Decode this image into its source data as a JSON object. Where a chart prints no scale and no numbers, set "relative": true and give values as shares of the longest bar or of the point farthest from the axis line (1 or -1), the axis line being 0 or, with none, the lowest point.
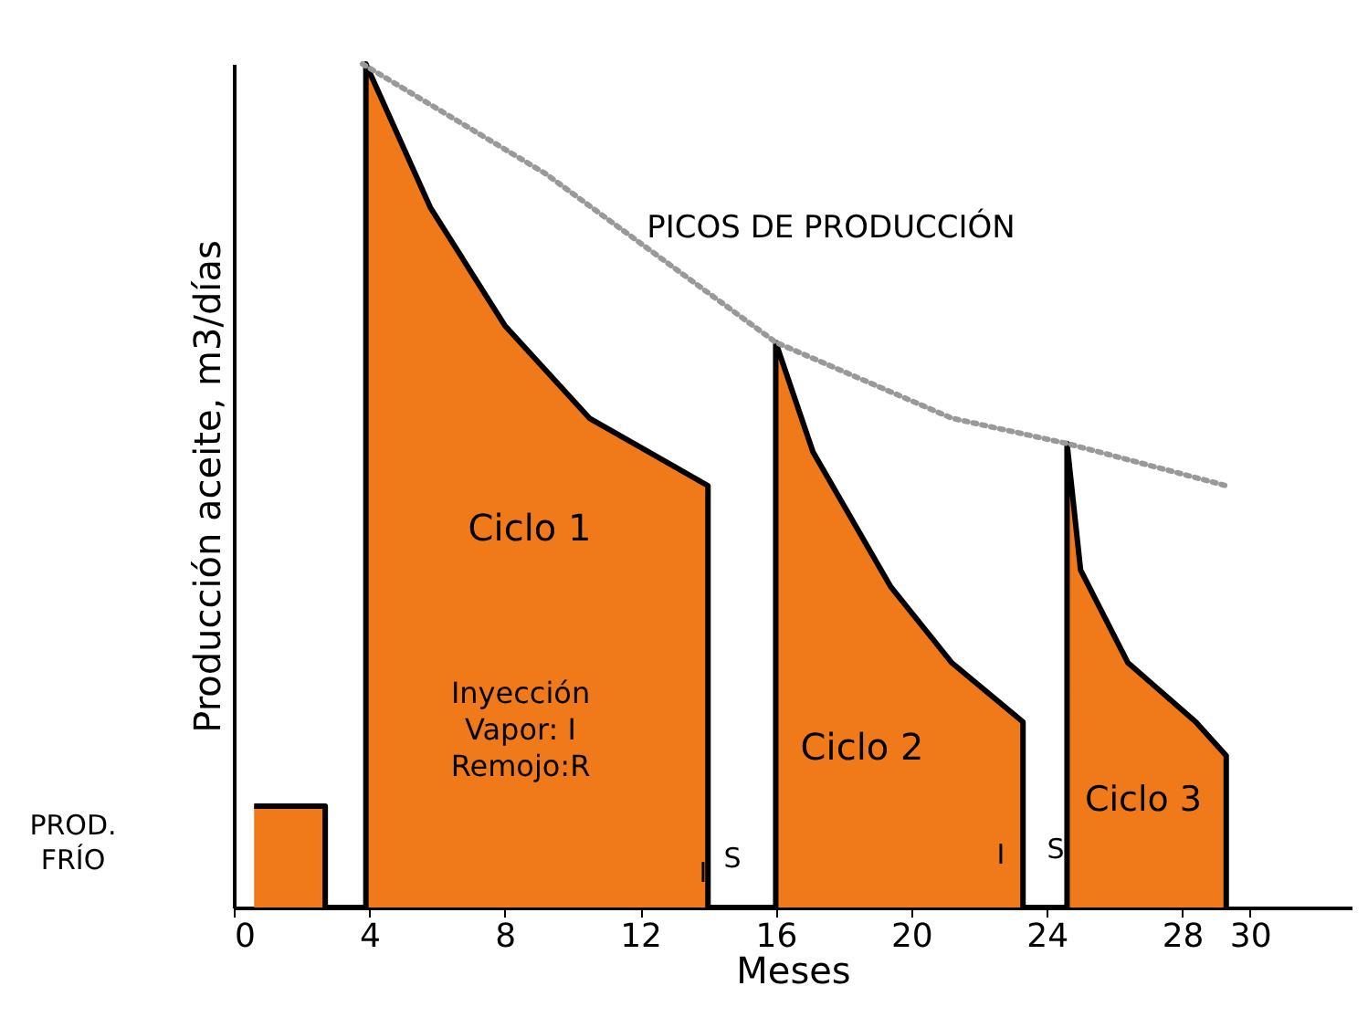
{
  "chart_data": {
    "type": "area",
    "relative": true,
    "xlabel": "Meses",
    "ylabel": "Producción aceite, m3/días",
    "xlim": [
      0,
      33
    ],
    "xticks": [
      0,
      4,
      8,
      12,
      16,
      20,
      24,
      28,
      30
    ],
    "grid": false,
    "series": [
      {
        "color": "#f07a1a",
        "x": [
          0.6,
          2.7,
          2.7,
          3.9,
          3.9,
          5.8,
          8,
          10.5,
          14,
          14,
          16,
          16,
          17.1,
          19.4,
          21.2,
          23.3,
          23.3,
          24.6,
          24.6,
          25,
          26.4,
          28.4,
          29.3,
          29.3
        ],
        "values": [
          0.12,
          0.12,
          0,
          0,
          1,
          0.83,
          0.69,
          0.58,
          0.5,
          0,
          0,
          0.67,
          0.54,
          0.38,
          0.29,
          0.22,
          0,
          0,
          0.55,
          0.4,
          0.29,
          0.22,
          0.18,
          0
        ]
      },
      {
        "type": "line",
        "color": "#999999",
        "line_style": "dotted",
        "x": [
          3.8,
          9.2,
          16,
          21.2,
          24.6,
          29.3
        ],
        "values": [
          1,
          0.87,
          0.67,
          0.58,
          0.55,
          0.5
        ]
      }
    ],
    "annotations": [
      "PICOS DE PRODUCCIÓN",
      "Ciclo 1",
      "Ciclo 2",
      "Ciclo 3",
      "Inyección\nVapor: I\nRemojo:R",
      "I",
      "S",
      "I",
      "S",
      "PROD.\nFRÍO"
    ]
  }
}
